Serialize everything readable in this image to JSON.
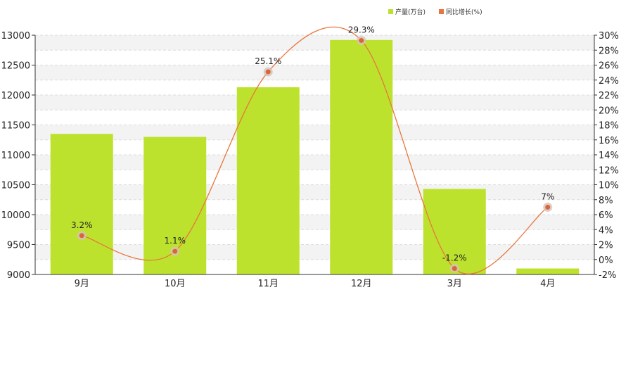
{
  "chart_data": {
    "type": "bar",
    "categories": [
      "9月",
      "10月",
      "11月",
      "12月",
      "3月",
      "4月"
    ],
    "series": [
      {
        "name": "产量(万台)",
        "type": "bar",
        "axis": "left",
        "color": "#bde22e",
        "values": [
          11350,
          11300,
          12130,
          12920,
          10430,
          9100
        ]
      },
      {
        "name": "同比增长(%)",
        "type": "line",
        "axis": "right",
        "color": "#e8763c",
        "values": [
          3.2,
          1.1,
          25.1,
          29.3,
          -1.2,
          7
        ],
        "labels": [
          "3.2%",
          "1.1%",
          "25.1%",
          "29.3%",
          "-1.2%",
          "7%"
        ]
      }
    ],
    "y_left": {
      "ylim": [
        9000,
        13000
      ],
      "ticks": [
        "9000",
        "9500",
        "10000",
        "10500",
        "11000",
        "11500",
        "12000",
        "12500",
        "13000"
      ]
    },
    "y_right": {
      "ylim": [
        -2,
        30
      ],
      "ticks": [
        "-2%",
        "0%",
        "2%",
        "4%",
        "6%",
        "8%",
        "10%",
        "12%",
        "14%",
        "16%",
        "18%",
        "20%",
        "22%",
        "24%",
        "26%",
        "28%",
        "30%"
      ]
    },
    "grid": true,
    "legend_position": "top-right"
  }
}
